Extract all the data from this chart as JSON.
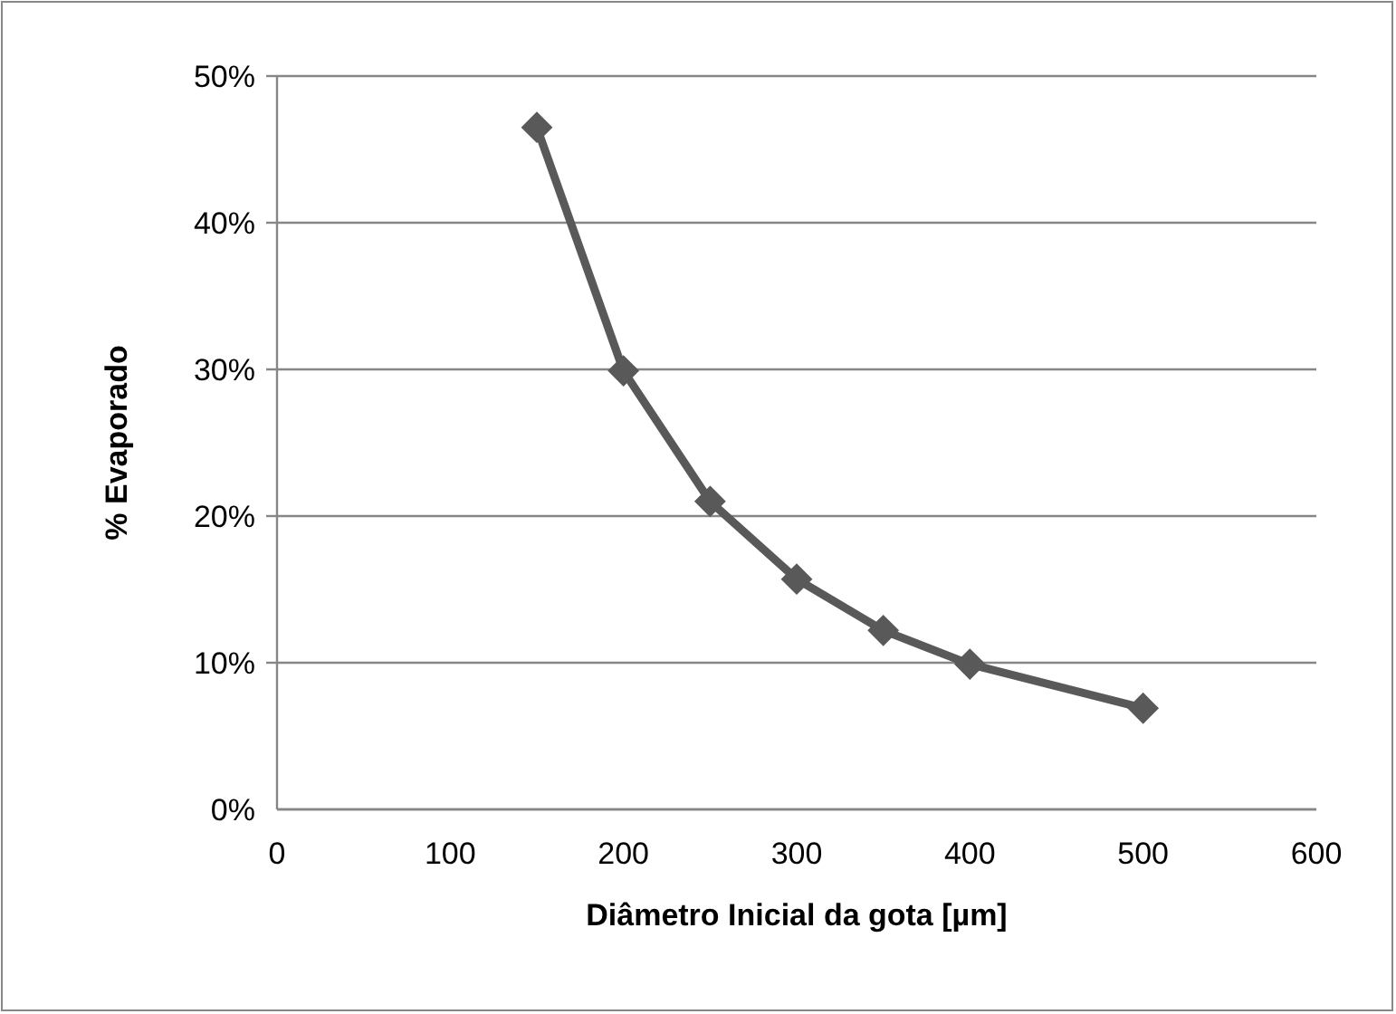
{
  "chart_data": {
    "type": "line",
    "xlabel": "Diâmetro Inicial da gota [µm]",
    "ylabel": "% Evaporado",
    "x": [
      150,
      200,
      250,
      300,
      350,
      400,
      500
    ],
    "series": [
      {
        "color": "#595959",
        "values": [
          46.5,
          29.9,
          21.0,
          15.7,
          12.2,
          9.9,
          6.9
        ]
      }
    ],
    "xlim": [
      0,
      600
    ],
    "xticks": [
      0,
      100,
      200,
      300,
      400,
      500,
      600
    ],
    "ylim": [
      0,
      50
    ],
    "yticks": [
      {
        "value": 0,
        "label": "0%"
      },
      {
        "value": 10,
        "label": "10%"
      },
      {
        "value": 20,
        "label": "20%"
      },
      {
        "value": 30,
        "label": "30%"
      },
      {
        "value": 40,
        "label": "40%"
      },
      {
        "value": 50,
        "label": "50%"
      }
    ],
    "grid": "y",
    "marker": "diamond"
  }
}
